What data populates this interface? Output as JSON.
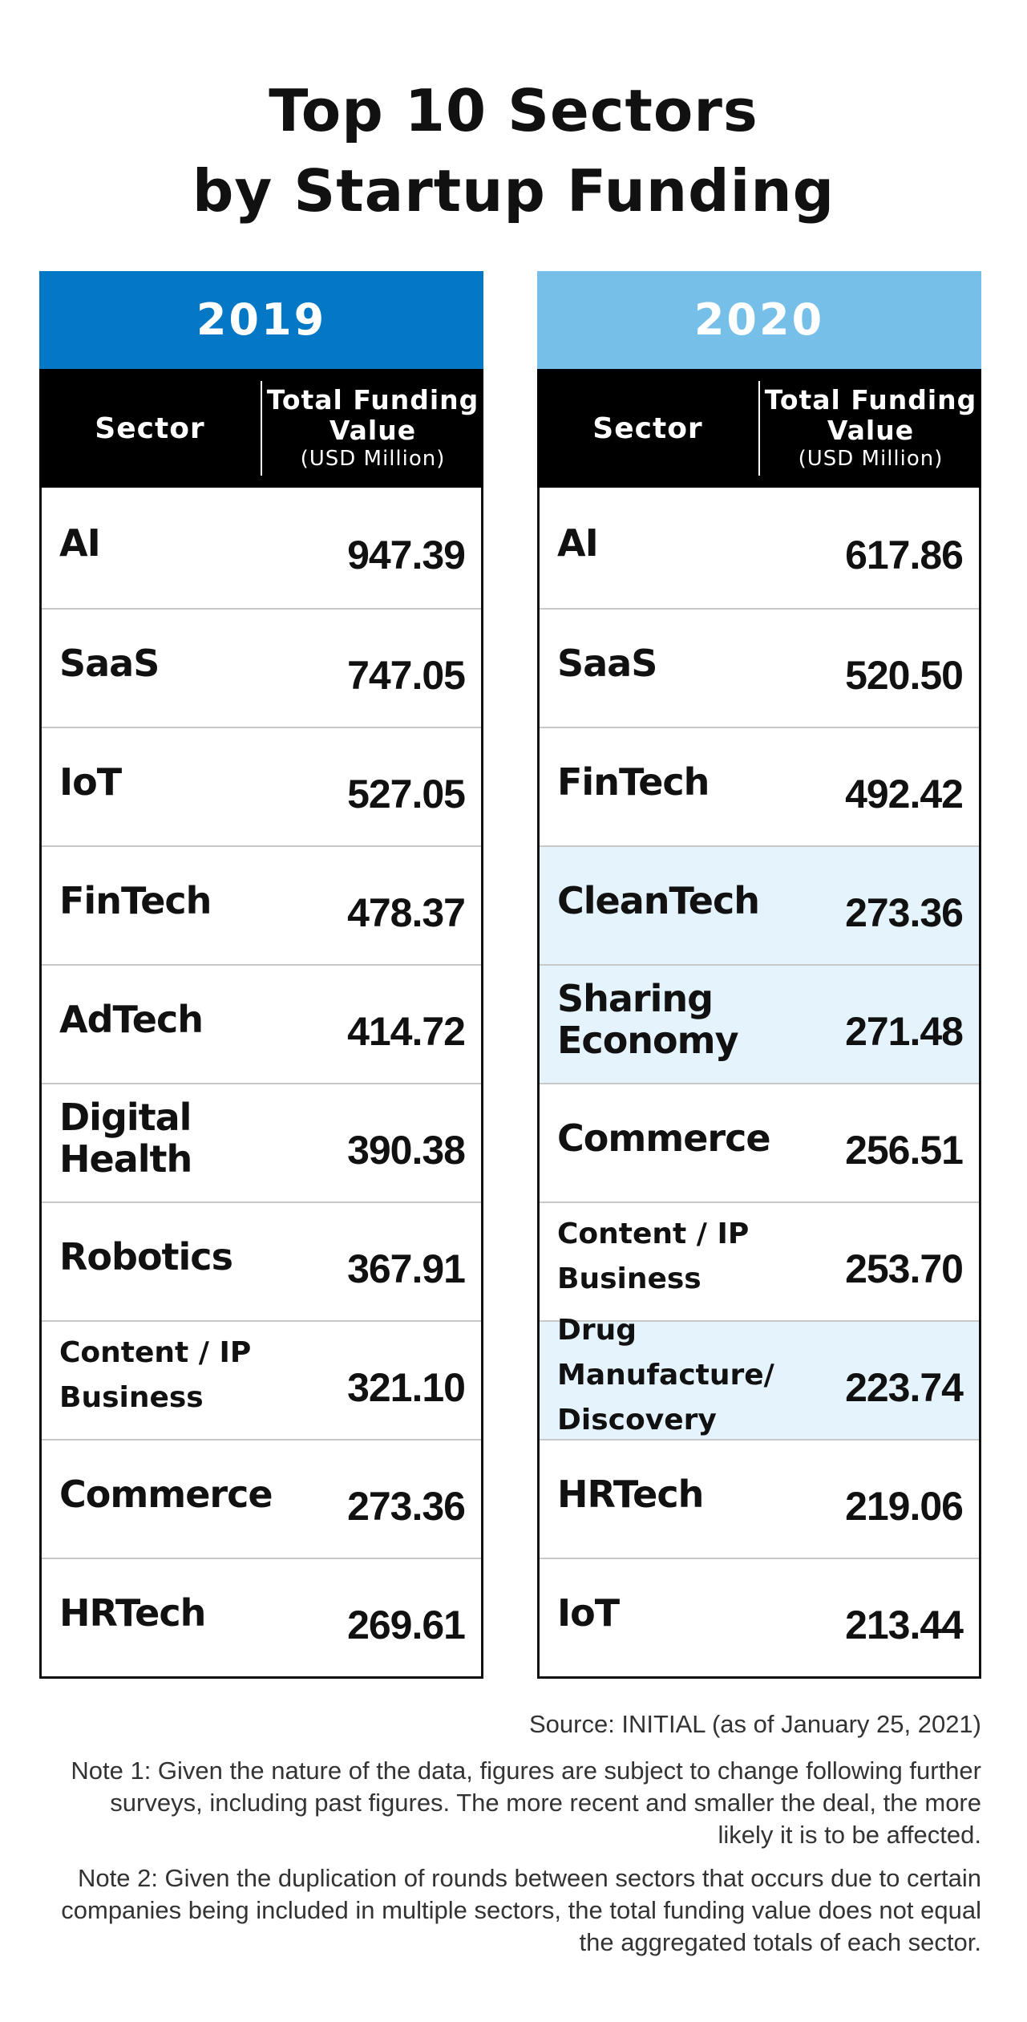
{
  "title_line1": "Top 10 Sectors",
  "title_line2": "by Startup Funding",
  "header": {
    "sector": "Sector",
    "value_line1": "Total Funding",
    "value_line2": "Value",
    "value_unit": "(USD Million)"
  },
  "colors": {
    "year2019": "#0478c4",
    "year2020": "#75bfe8",
    "highlight": "#e4f3fc"
  },
  "chart_data": {
    "type": "table",
    "title": "Top 10 Sectors by Startup Funding",
    "columns": [
      "Sector",
      "Total Funding Value (USD Million)"
    ],
    "tables": [
      {
        "year": "2019",
        "rows": [
          {
            "sector": "AI",
            "value": "947.39"
          },
          {
            "sector": "SaaS",
            "value": "747.05"
          },
          {
            "sector": "IoT",
            "value": "527.05"
          },
          {
            "sector": "FinTech",
            "value": "478.37"
          },
          {
            "sector": "AdTech",
            "value": "414.72"
          },
          {
            "sector": "Digital Health",
            "value": "390.38"
          },
          {
            "sector": "Robotics",
            "value": "367.91"
          },
          {
            "sector": "Content / IP Business",
            "value": "321.10"
          },
          {
            "sector": "Commerce",
            "value": "273.36"
          },
          {
            "sector": "HRTech",
            "value": "269.61"
          }
        ]
      },
      {
        "year": "2020",
        "rows": [
          {
            "sector": "AI",
            "value": "617.86"
          },
          {
            "sector": "SaaS",
            "value": "520.50"
          },
          {
            "sector": "FinTech",
            "value": "492.42"
          },
          {
            "sector": "CleanTech",
            "value": "273.36",
            "highlighted": true
          },
          {
            "sector": "Sharing Economy",
            "value": "271.48",
            "highlighted": true
          },
          {
            "sector": "Commerce",
            "value": "256.51"
          },
          {
            "sector": "Content / IP Business",
            "value": "253.70"
          },
          {
            "sector": "Drug Manufacture/ Discovery",
            "value": "223.74",
            "highlighted": true
          },
          {
            "sector": "HRTech",
            "value": "219.06"
          },
          {
            "sector": "IoT",
            "value": "213.44"
          }
        ]
      }
    ]
  },
  "source": "Source: INITIAL (as of January 25, 2021)",
  "note1": "Note 1: Given the nature of the data, figures are subject to change following further surveys, including past figures. The more recent and smaller the deal, the more likely it is to be affected.",
  "note2": "Note 2: Given the duplication of rounds between sectors that occurs due to certain companies being included in multiple sectors, the total funding value does not equal the aggregated totals of each sector."
}
